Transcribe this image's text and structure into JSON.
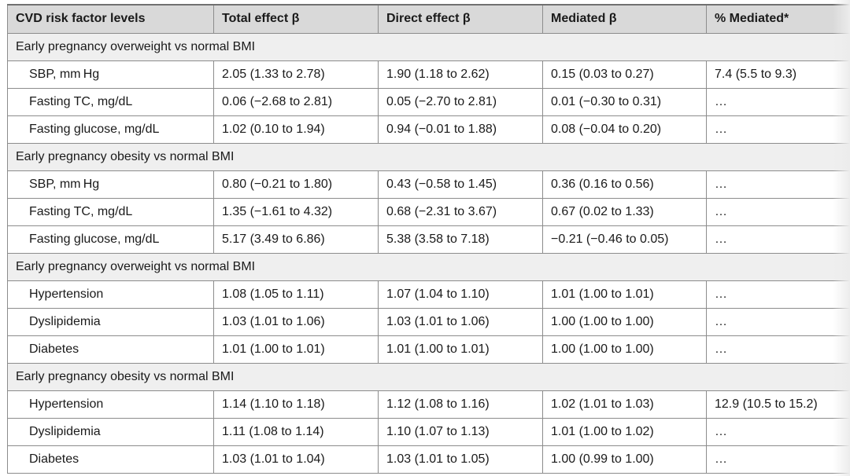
{
  "headers": [
    "CVD risk factor levels",
    "Total effect β",
    "Direct effect β",
    "Mediated β",
    "% Mediated*"
  ],
  "groups": [
    {
      "label": "Early pregnancy overweight vs normal BMI",
      "rows": [
        {
          "factor": "SBP, mm Hg",
          "total": "2.05 (1.33 to 2.78)",
          "direct": "1.90 (1.18 to 2.62)",
          "mediated": "0.15 (0.03 to 0.27)",
          "pct": "7.4 (5.5 to 9.3)"
        },
        {
          "factor": "Fasting TC, mg/dL",
          "total": "0.06 (−2.68 to 2.81)",
          "direct": "0.05 (−2.70 to 2.81)",
          "mediated": "0.01 (−0.30 to 0.31)",
          "pct": "…"
        },
        {
          "factor": "Fasting glucose, mg/dL",
          "total": "1.02 (0.10 to 1.94)",
          "direct": "0.94 (−0.01 to 1.88)",
          "mediated": "0.08 (−0.04 to 0.20)",
          "pct": "…"
        }
      ]
    },
    {
      "label": "Early pregnancy obesity vs normal BMI",
      "rows": [
        {
          "factor": "SBP, mm Hg",
          "total": "0.80 (−0.21 to 1.80)",
          "direct": "0.43 (−0.58 to 1.45)",
          "mediated": "0.36 (0.16 to 0.56)",
          "pct": "…"
        },
        {
          "factor": "Fasting TC, mg/dL",
          "total": "1.35 (−1.61 to 4.32)",
          "direct": "0.68 (−2.31 to 3.67)",
          "mediated": "0.67 (0.02 to 1.33)",
          "pct": "…"
        },
        {
          "factor": "Fasting glucose, mg/dL",
          "total": "5.17 (3.49 to 6.86)",
          "direct": "5.38 (3.58 to 7.18)",
          "mediated": "−0.21 (−0.46 to 0.05)",
          "pct": "…"
        }
      ]
    },
    {
      "label": "Early pregnancy overweight vs normal BMI",
      "rows": [
        {
          "factor": "Hypertension",
          "total": "1.08 (1.05 to 1.11)",
          "direct": "1.07 (1.04 to 1.10)",
          "mediated": "1.01 (1.00 to 1.01)",
          "pct": "…"
        },
        {
          "factor": "Dyslipidemia",
          "total": "1.03 (1.01 to 1.06)",
          "direct": "1.03 (1.01 to 1.06)",
          "mediated": "1.00 (1.00 to 1.00)",
          "pct": "…"
        },
        {
          "factor": "Diabetes",
          "total": "1.01 (1.00 to 1.01)",
          "direct": "1.01 (1.00 to 1.01)",
          "mediated": "1.00 (1.00 to 1.00)",
          "pct": "…"
        }
      ]
    },
    {
      "label": "Early pregnancy obesity vs normal BMI",
      "rows": [
        {
          "factor": "Hypertension",
          "total": "1.14 (1.10 to 1.18)",
          "direct": "1.12 (1.08 to 1.16)",
          "mediated": "1.02 (1.01 to 1.03)",
          "pct": "12.9 (10.5 to 15.2)"
        },
        {
          "factor": "Dyslipidemia",
          "total": "1.11 (1.08 to 1.14)",
          "direct": "1.10 (1.07 to 1.13)",
          "mediated": "1.01 (1.00 to 1.02)",
          "pct": "…"
        },
        {
          "factor": "Diabetes",
          "total": "1.03 (1.01 to 1.04)",
          "direct": "1.03 (1.01 to 1.05)",
          "mediated": "1.00 (0.99 to 1.00)",
          "pct": "…"
        }
      ]
    }
  ]
}
